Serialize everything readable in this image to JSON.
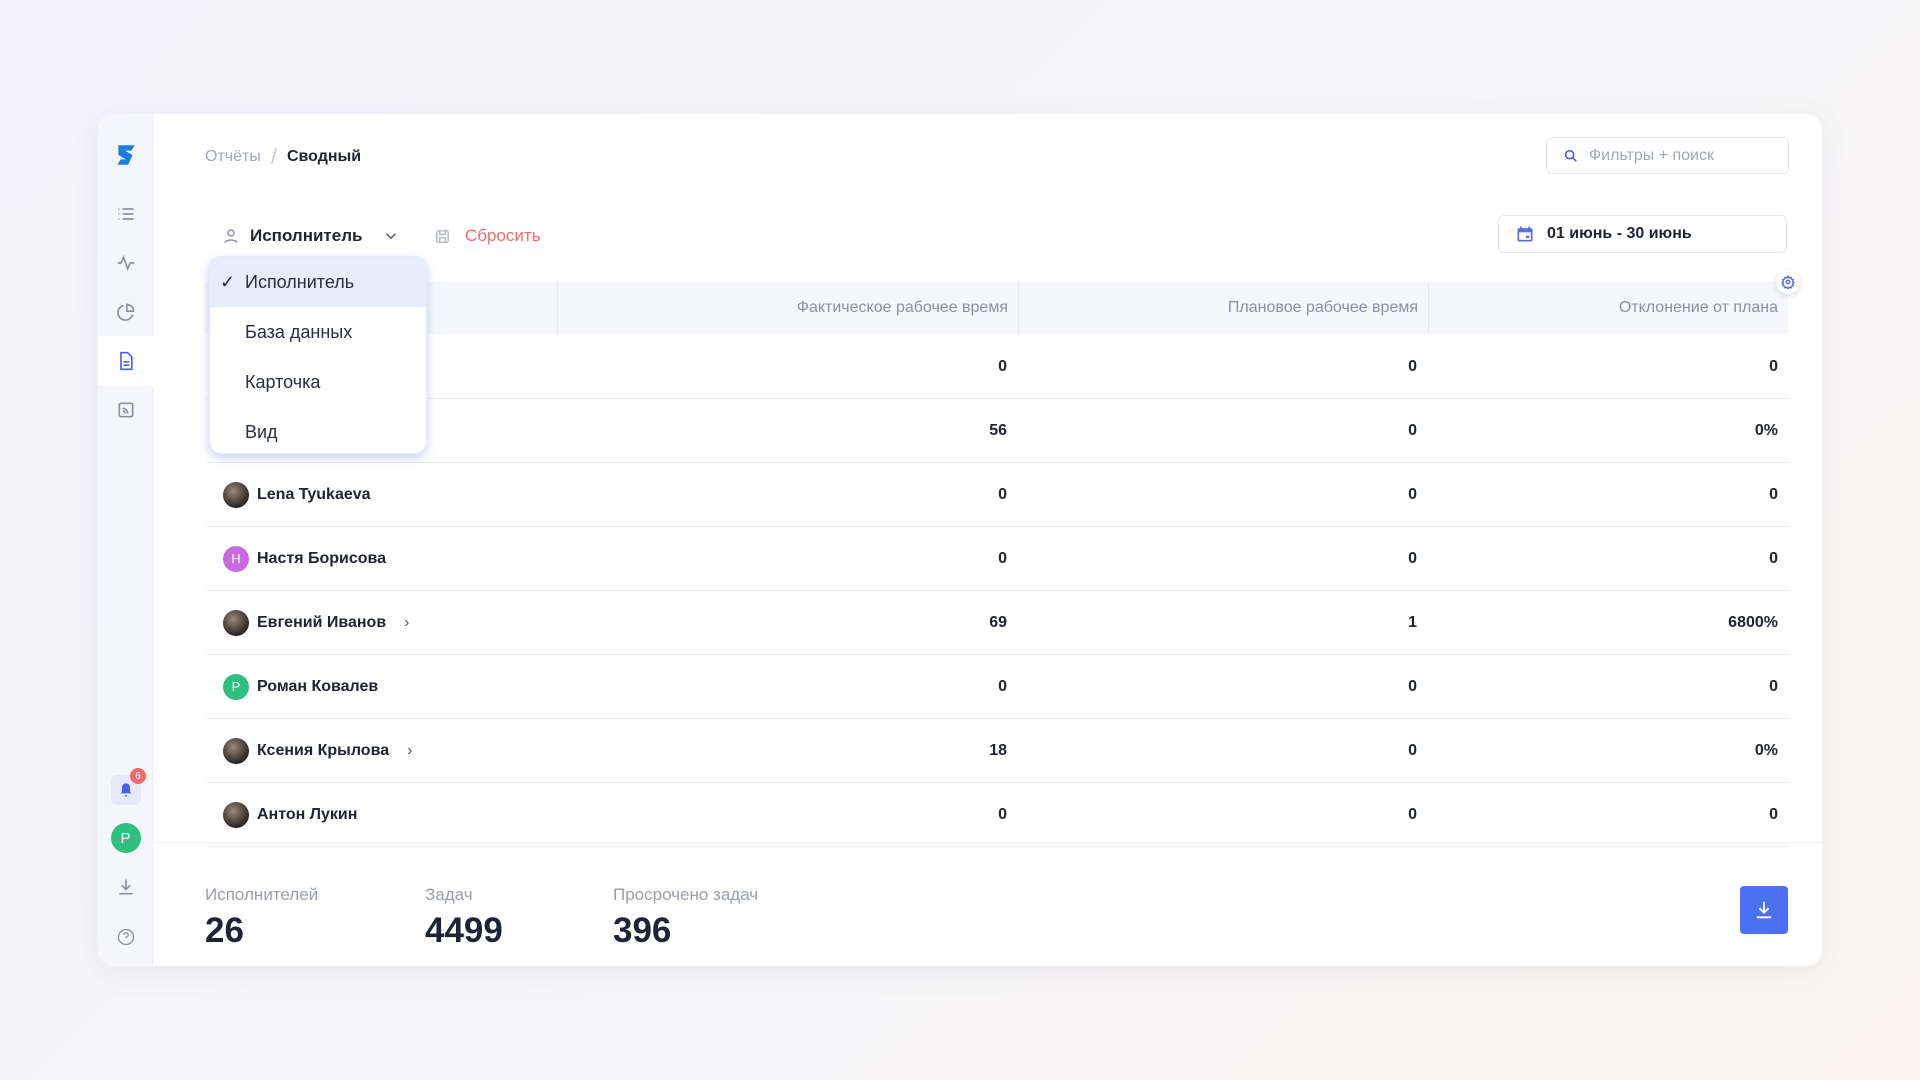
{
  "breadcrumb": {
    "parent": "Отчёты",
    "current": "Сводный"
  },
  "search": {
    "placeholder": "Фильтры + поиск"
  },
  "toolbar": {
    "group_by": "Исполнитель",
    "reset": "Сбросить"
  },
  "date_range": "01 июнь - 30 июнь",
  "dropdown": {
    "options": [
      "Исполнитель",
      "База данных",
      "Карточка",
      "Вид"
    ],
    "selected": "Исполнитель"
  },
  "table": {
    "columns": [
      "",
      "Фактическое рабочее время",
      "Плановое рабочее время",
      "Отклонение от плана"
    ],
    "rows": [
      {
        "name": "",
        "actual": "0",
        "plan": "0",
        "dev": "0"
      },
      {
        "name": "",
        "actual": "56",
        "plan": "0",
        "dev": "0%"
      },
      {
        "name": "Lena Tyukaeva",
        "actual": "0",
        "plan": "0",
        "dev": "0",
        "avatar": "photo",
        "expand": false
      },
      {
        "name": "Настя Борисова",
        "actual": "0",
        "plan": "0",
        "dev": "0",
        "avatar": "Н",
        "color": "#c96be0",
        "expand": false
      },
      {
        "name": "Евгений Иванов",
        "actual": "69",
        "plan": "1",
        "dev": "6800%",
        "avatar": "photo",
        "expand": true
      },
      {
        "name": "Роман Ковалев",
        "actual": "0",
        "plan": "0",
        "dev": "0",
        "avatar": "Р",
        "color": "#2fbf7e",
        "expand": false
      },
      {
        "name": "Ксения Крылова",
        "actual": "18",
        "plan": "0",
        "dev": "0%",
        "avatar": "photo",
        "expand": true
      },
      {
        "name": "Антон Лукин",
        "actual": "0",
        "plan": "0",
        "dev": "0",
        "avatar": "photo",
        "expand": false
      }
    ]
  },
  "stats": [
    {
      "label": "Исполнителей",
      "value": "26"
    },
    {
      "label": "Задач",
      "value": "4499"
    },
    {
      "label": "Просрочено задач",
      "value": "396"
    }
  ],
  "sidebar": {
    "notifications": "6",
    "user_initial": "Р"
  },
  "colors": {
    "accent": "#4a6ff0",
    "reset": "#f26b6b"
  }
}
